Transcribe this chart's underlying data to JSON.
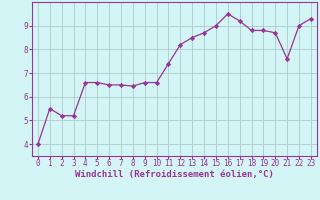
{
  "x": [
    0,
    1,
    2,
    3,
    4,
    5,
    6,
    7,
    8,
    9,
    10,
    11,
    12,
    13,
    14,
    15,
    16,
    17,
    18,
    19,
    20,
    21,
    22,
    23
  ],
  "y": [
    4.0,
    5.5,
    5.2,
    5.2,
    6.6,
    6.6,
    6.5,
    6.5,
    6.45,
    6.6,
    6.6,
    7.4,
    8.2,
    8.5,
    8.7,
    9.0,
    9.5,
    9.2,
    8.8,
    8.8,
    8.7,
    7.6,
    9.0,
    9.3
  ],
  "line_color": "#993399",
  "marker": "D",
  "marker_size": 2.2,
  "bg_color": "#d4f5f5",
  "grid_color": "#aacccc",
  "axis_color": "#993399",
  "tick_color": "#993399",
  "xlabel": "Windchill (Refroidissement éolien,°C)",
  "xlabel_color": "#993399",
  "ylim": [
    3.5,
    10.0
  ],
  "xlim": [
    -0.5,
    23.5
  ],
  "yticks": [
    4,
    5,
    6,
    7,
    8,
    9
  ],
  "xtick_labels": [
    "0",
    "1",
    "2",
    "3",
    "4",
    "5",
    "6",
    "7",
    "8",
    "9",
    "10",
    "11",
    "12",
    "13",
    "14",
    "15",
    "16",
    "17",
    "18",
    "19",
    "20",
    "21",
    "22",
    "23"
  ],
  "font_size_ticks": 5.5,
  "font_size_label": 6.5
}
